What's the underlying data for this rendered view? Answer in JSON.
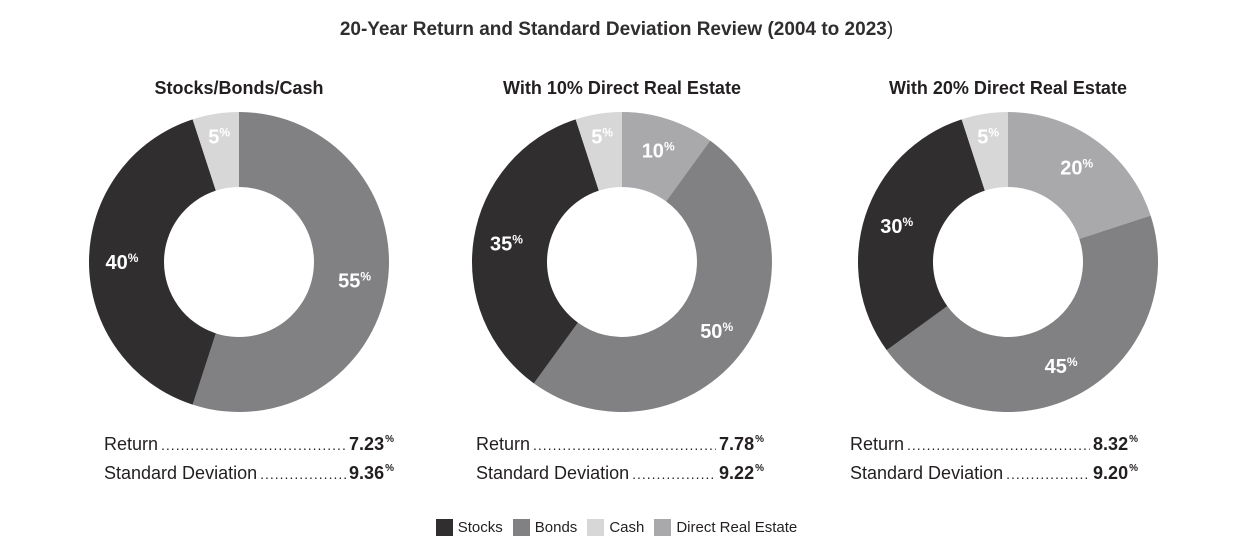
{
  "title": "20-Year Return and Standard Deviation Review (2004 to 2023",
  "title_paren": ")",
  "colors": {
    "Stocks": "#302e2f",
    "Bonds": "#818083",
    "Cash": "#d7d7d8",
    "Direct Real Estate": "#a9a8ab"
  },
  "legend": [
    "Stocks",
    "Bonds",
    "Cash",
    "Direct Real Estate"
  ],
  "percent_sign": "%",
  "chart_data": [
    {
      "type": "pie",
      "title": "Stocks/Bonds/Cash",
      "slices": [
        {
          "category": "Bonds",
          "value": 55,
          "label": "55"
        },
        {
          "category": "Stocks",
          "value": 40,
          "label": "40"
        },
        {
          "category": "Cash",
          "value": 5,
          "label": "5"
        }
      ],
      "stats": [
        {
          "label": "Return",
          "value": "7.23"
        },
        {
          "label": "Standard Deviation",
          "value": "9.36"
        }
      ]
    },
    {
      "type": "pie",
      "title": "With 10% Direct Real Estate",
      "slices": [
        {
          "category": "Direct Real Estate",
          "value": 10,
          "label": "10"
        },
        {
          "category": "Bonds",
          "value": 50,
          "label": "50"
        },
        {
          "category": "Stocks",
          "value": 35,
          "label": "35"
        },
        {
          "category": "Cash",
          "value": 5,
          "label": "5"
        }
      ],
      "stats": [
        {
          "label": "Return",
          "value": "7.78"
        },
        {
          "label": "Standard Deviation",
          "value": "9.22"
        }
      ]
    },
    {
      "type": "pie",
      "title": "With 20% Direct Real Estate",
      "slices": [
        {
          "category": "Direct Real Estate",
          "value": 20,
          "label": "20"
        },
        {
          "category": "Bonds",
          "value": 45,
          "label": "45"
        },
        {
          "category": "Stocks",
          "value": 30,
          "label": "30"
        },
        {
          "category": "Cash",
          "value": 5,
          "label": "5"
        }
      ],
      "stats": [
        {
          "label": "Return",
          "value": "8.32"
        },
        {
          "label": "Standard Deviation",
          "value": "9.20"
        }
      ]
    }
  ]
}
